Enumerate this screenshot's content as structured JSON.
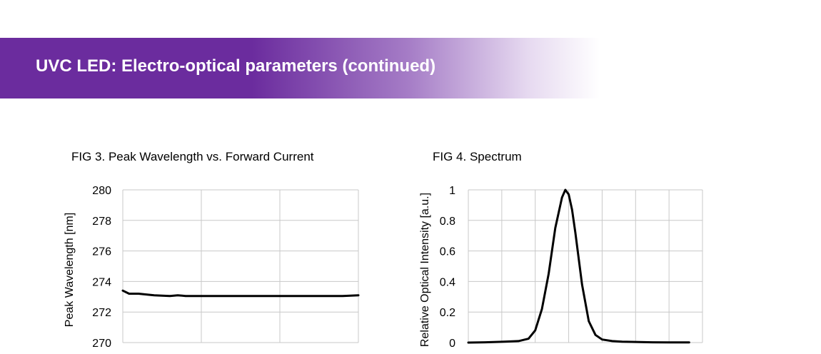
{
  "slide": {
    "title": "UVC LED: Electro-optical parameters (continued)",
    "banner_color": "#6b2c9e"
  },
  "chart_data": [
    {
      "type": "line",
      "title": "FIG 3. Peak Wavelength vs. Forward Current",
      "xlabel": "",
      "ylabel": "Peak Wavelength [nm]",
      "ylim": [
        270,
        280
      ],
      "yticks": [
        "280",
        "278",
        "276",
        "274",
        "272",
        "270"
      ],
      "xlim": [
        0,
        3
      ],
      "grid": true,
      "series": [
        {
          "x": [
            0,
            0.08,
            0.2,
            0.4,
            0.6,
            0.7,
            0.8,
            0.9,
            1.0,
            1.2,
            1.4,
            1.6,
            1.8,
            2.0,
            2.2,
            2.4,
            2.6,
            2.8,
            3.0
          ],
          "values": [
            273.4,
            273.2,
            273.2,
            273.1,
            273.05,
            273.1,
            273.05,
            273.05,
            273.05,
            273.05,
            273.05,
            273.05,
            273.05,
            273.05,
            273.05,
            273.05,
            273.05,
            273.05,
            273.1
          ],
          "color": "#000000"
        }
      ]
    },
    {
      "type": "line",
      "title": "FIG 4. Spectrum",
      "xlabel": "",
      "ylabel": "Relative Optical Intensity [a.u.]",
      "ylim": [
        0,
        1
      ],
      "yticks": [
        "1",
        "0.8",
        "0.6",
        "0.4",
        "0.2",
        "0"
      ],
      "xlim": [
        0,
        7
      ],
      "grid": true,
      "series": [
        {
          "x": [
            0.0,
            0.5,
            1.0,
            1.5,
            1.8,
            2.0,
            2.2,
            2.4,
            2.6,
            2.8,
            2.9,
            3.0,
            3.1,
            3.2,
            3.4,
            3.6,
            3.8,
            4.0,
            4.3,
            4.6,
            5.0,
            5.5,
            6.0,
            6.6
          ],
          "values": [
            0.0,
            0.002,
            0.005,
            0.01,
            0.025,
            0.08,
            0.22,
            0.45,
            0.75,
            0.95,
            1.0,
            0.97,
            0.87,
            0.72,
            0.38,
            0.14,
            0.05,
            0.02,
            0.01,
            0.006,
            0.004,
            0.002,
            0.001,
            0.001
          ],
          "color": "#000000"
        }
      ]
    }
  ]
}
